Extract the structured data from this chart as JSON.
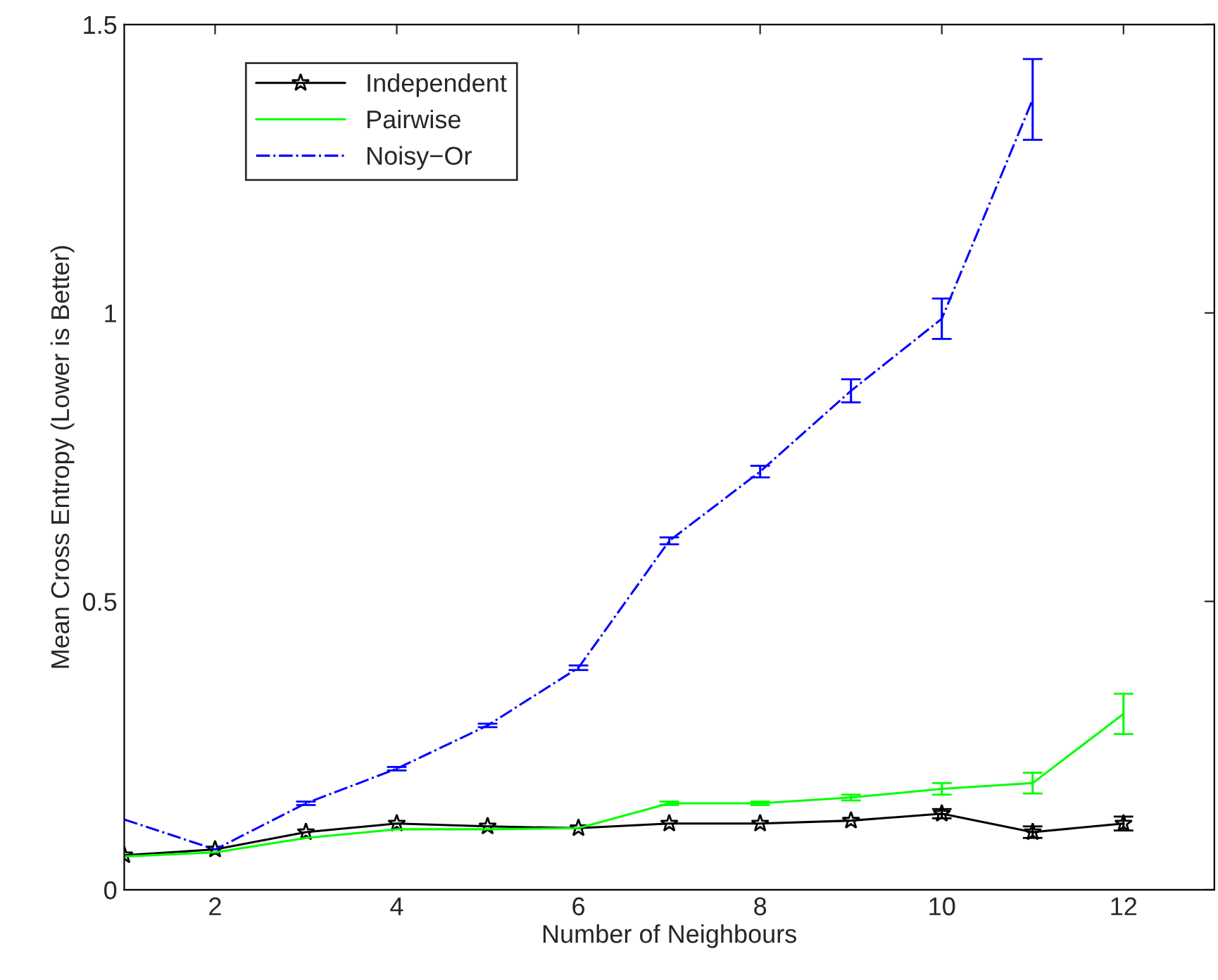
{
  "chart_data": {
    "type": "line",
    "xlabel": "Number of Neighbours",
    "ylabel": "Mean Cross Entropy (Lower is Better)",
    "x": [
      1,
      2,
      3,
      4,
      5,
      6,
      7,
      8,
      9,
      10,
      11,
      12
    ],
    "series": [
      {
        "name": "Independent",
        "color": "#000000",
        "marker": "star",
        "line_style": "solid",
        "values": [
          0.06,
          0.07,
          0.1,
          0.115,
          0.11,
          0.107,
          0.115,
          0.115,
          0.12,
          0.132,
          0.1,
          0.115
        ],
        "errors": [
          null,
          null,
          null,
          null,
          null,
          null,
          null,
          null,
          null,
          0.008,
          0.01,
          0.012
        ]
      },
      {
        "name": "Pairwise",
        "color": "#00ff00",
        "marker": "none",
        "line_style": "solid",
        "values": [
          0.058,
          0.065,
          0.09,
          0.105,
          0.105,
          0.107,
          0.15,
          0.15,
          0.16,
          0.175,
          0.185,
          0.305
        ],
        "errors": [
          null,
          null,
          null,
          null,
          null,
          null,
          0.003,
          0.003,
          0.005,
          0.01,
          0.018,
          0.035
        ]
      },
      {
        "name": "Noisy−Or",
        "color": "#0000ff",
        "marker": "none",
        "line_style": "dashdot",
        "values": [
          0.122,
          0.07,
          0.15,
          0.21,
          0.285,
          0.385,
          0.605,
          0.725,
          0.865,
          0.99,
          1.37,
          null
        ],
        "errors": [
          null,
          null,
          0.003,
          0.003,
          0.003,
          0.004,
          0.006,
          0.01,
          0.02,
          0.035,
          0.07,
          null
        ]
      }
    ],
    "xlim": [
      1,
      13
    ],
    "ylim": [
      0,
      1.5
    ],
    "xticks": [
      2,
      4,
      6,
      8,
      10,
      12
    ],
    "yticks": [
      0,
      0.5,
      1,
      1.5
    ],
    "grid": false,
    "legend": "top left"
  }
}
